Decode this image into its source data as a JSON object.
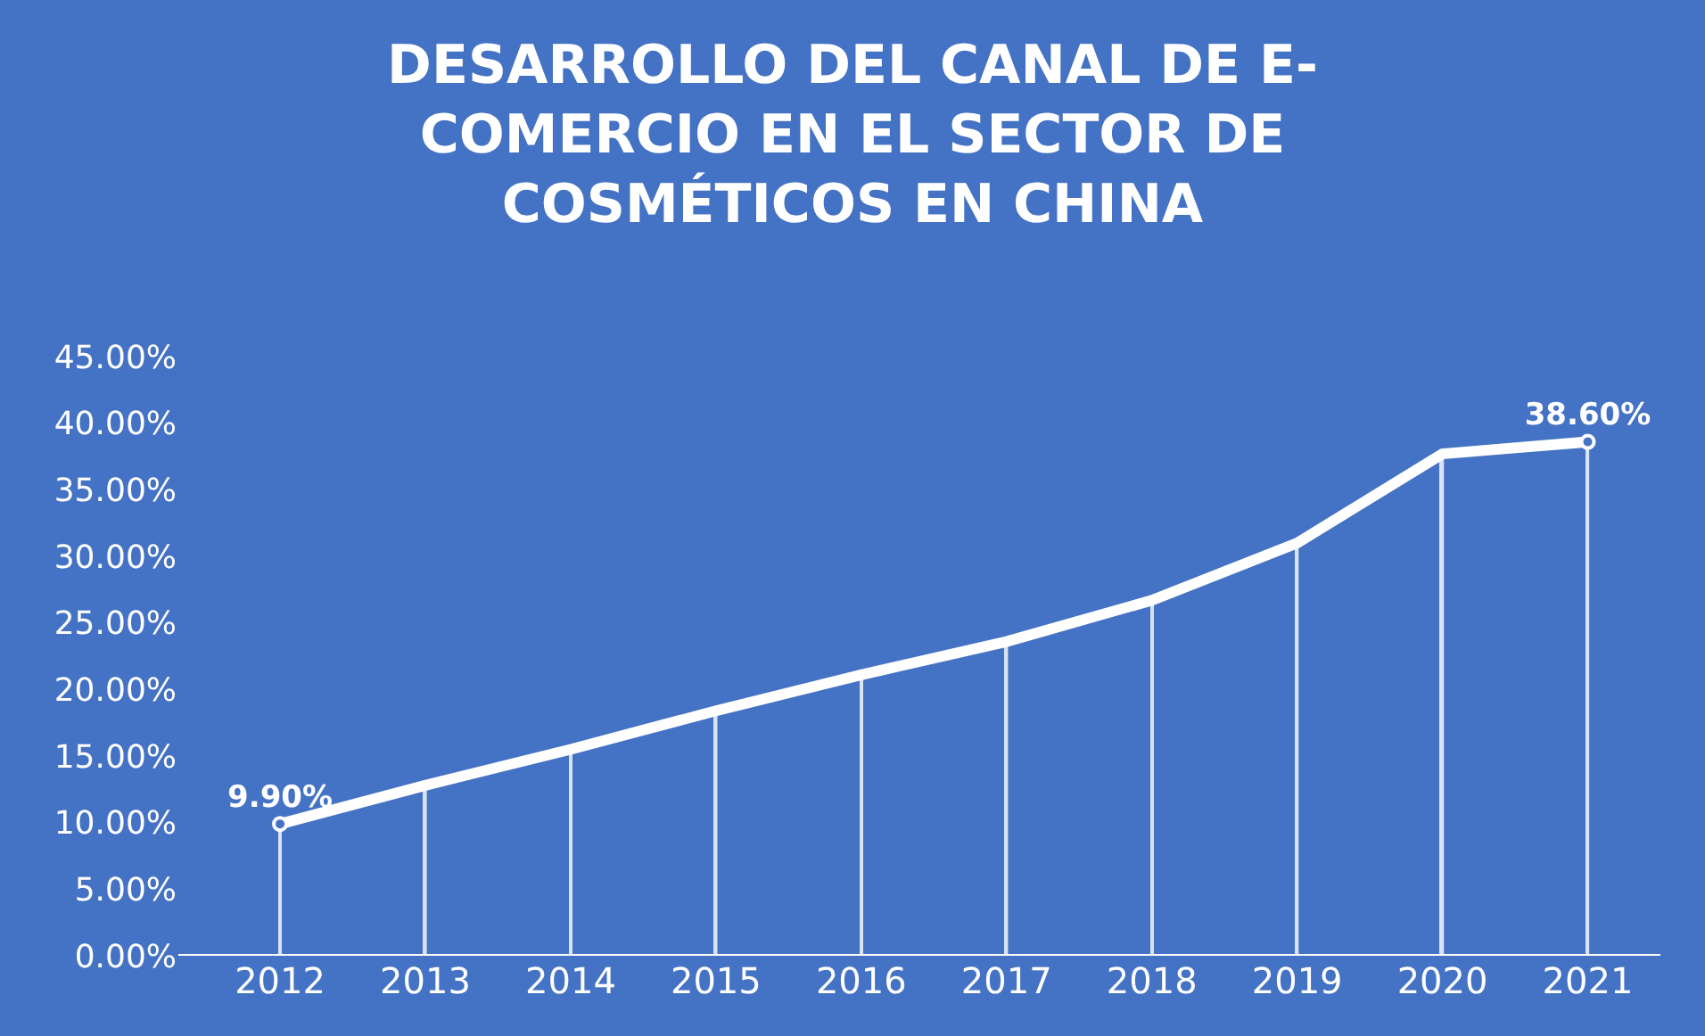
{
  "chart_data": {
    "type": "line",
    "title": "DESARROLLO DEL CANAL DE E-\nCOMERCIO EN EL SECTOR DE\nCOSMÉTICOS EN CHINA",
    "categories": [
      "2012",
      "2013",
      "2014",
      "2015",
      "2016",
      "2017",
      "2018",
      "2019",
      "2020",
      "2021"
    ],
    "series": [
      {
        "color": "#ffffff",
        "values": [
          9.9,
          12.8,
          15.5,
          18.4,
          21.1,
          23.6,
          26.7,
          31.0,
          37.7,
          38.6
        ],
        "value_labels": [
          "9.90%",
          null,
          null,
          null,
          null,
          null,
          null,
          null,
          null,
          "38.60%"
        ]
      },
      {
        "type": "bar",
        "color": "#ffffff",
        "values": [
          9.9,
          12.8,
          15.5,
          18.4,
          21.1,
          23.6,
          26.7,
          31.0,
          37.7,
          38.6
        ]
      }
    ],
    "ylim": [
      0,
      45
    ],
    "yticks": [
      {
        "value": 0,
        "label": "0.00%"
      },
      {
        "value": 5,
        "label": "5.00%"
      },
      {
        "value": 10,
        "label": "10.00%"
      },
      {
        "value": 15,
        "label": "15.00%"
      },
      {
        "value": 20,
        "label": "20.00%"
      },
      {
        "value": 25,
        "label": "25.00%"
      },
      {
        "value": 30,
        "label": "30.00%"
      },
      {
        "value": 35,
        "label": "35.00%"
      },
      {
        "value": 40,
        "label": "40.00%"
      },
      {
        "value": 45,
        "label": "45.00%"
      }
    ],
    "grid": false
  }
}
